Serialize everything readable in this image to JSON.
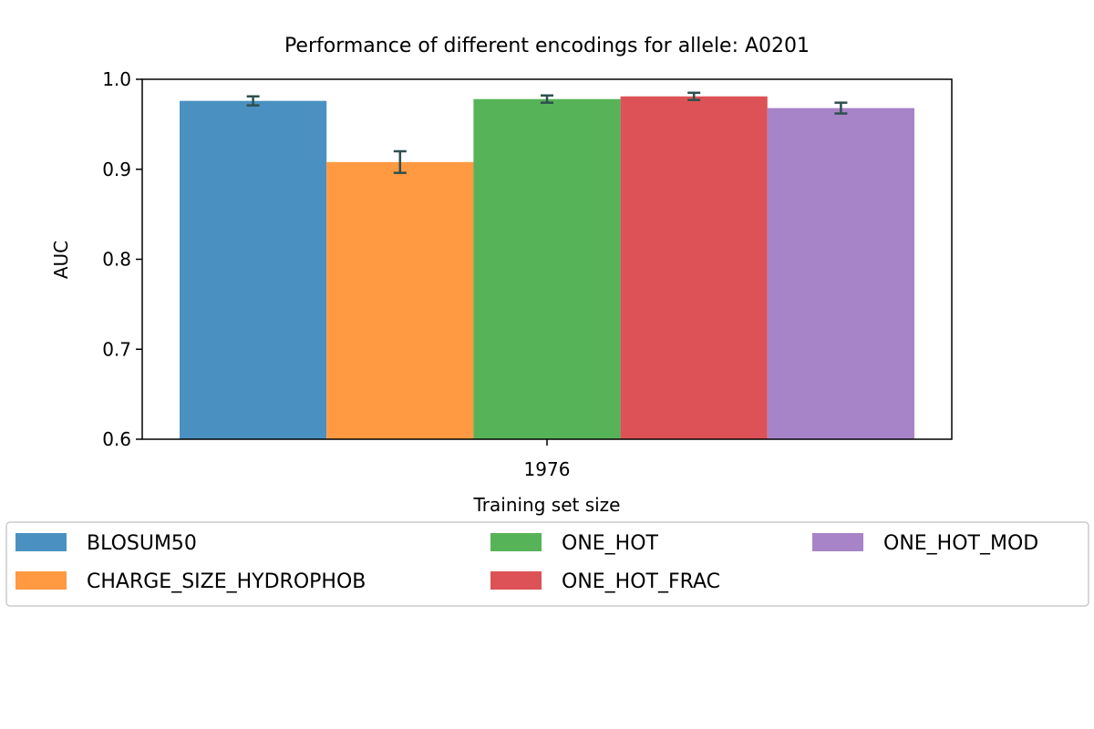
{
  "chart_data": {
    "type": "bar",
    "title": "Performance of different encodings for allele: A0201",
    "xlabel": "Training set size",
    "ylabel": "AUC",
    "categories": [
      "1976"
    ],
    "ylim": [
      0.6,
      1.0
    ],
    "yticks": [
      "0.6",
      "0.7",
      "0.8",
      "0.9",
      "1.0"
    ],
    "grid": false,
    "legend_position": "below",
    "series": [
      {
        "name": "BLOSUM50",
        "values": [
          0.976
        ],
        "error": [
          0.005
        ],
        "color": "#4a91c2"
      },
      {
        "name": "CHARGE_SIZE_HYDROPHOB",
        "values": [
          0.908
        ],
        "error": [
          0.012
        ],
        "color": "#ff9a42"
      },
      {
        "name": "ONE_HOT",
        "values": [
          0.978
        ],
        "error": [
          0.004
        ],
        "color": "#57b357"
      },
      {
        "name": "ONE_HOT_FRAC",
        "values": [
          0.981
        ],
        "error": [
          0.004
        ],
        "color": "#dd5256"
      },
      {
        "name": "ONE_HOT_MOD",
        "values": [
          0.968
        ],
        "error": [
          0.006
        ],
        "color": "#a783c8"
      }
    ],
    "errorbar_color": "#2f4f4f"
  }
}
